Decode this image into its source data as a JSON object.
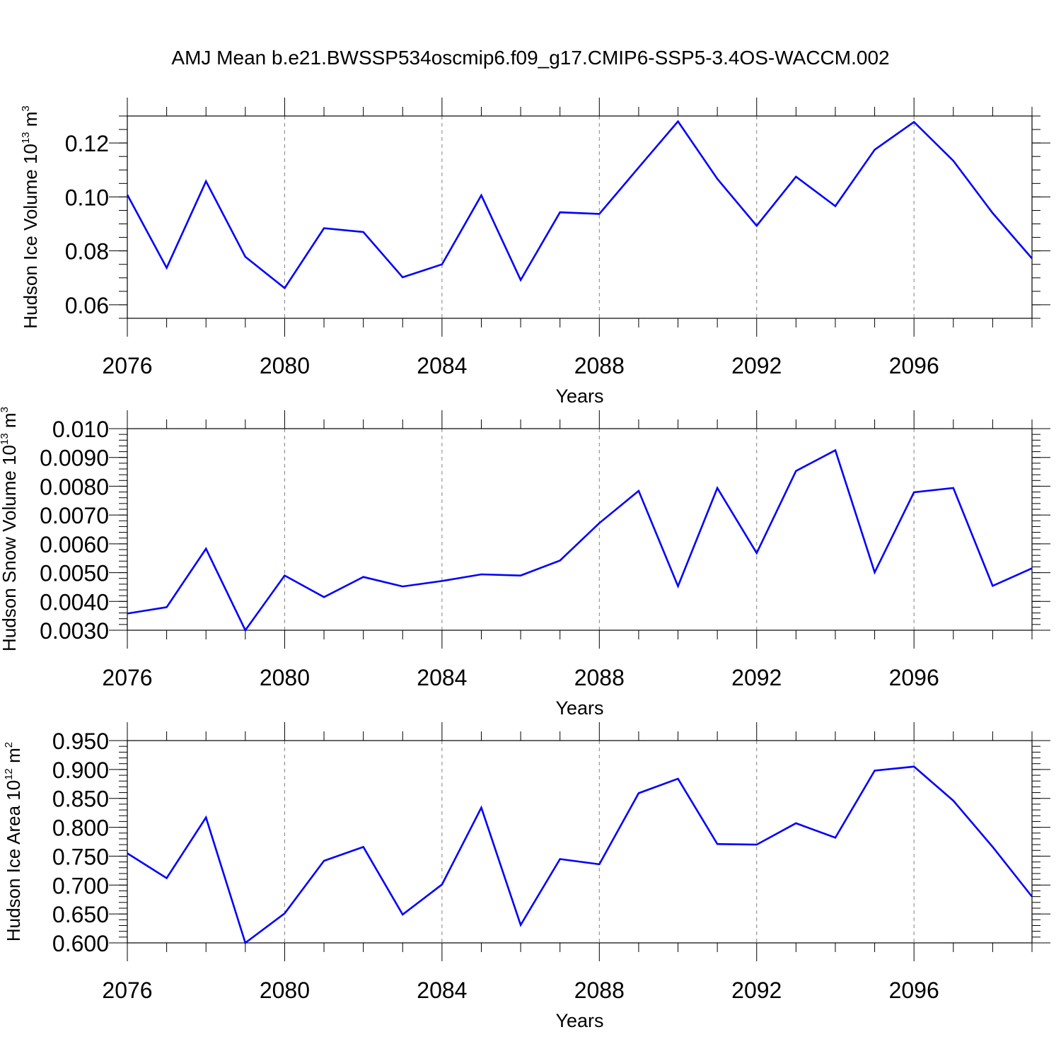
{
  "title": "AMJ Mean b.e21.BWSSP534oscmip6.f09_g17.CMIP6-SSP5-3.4OS-WACCM.002",
  "colors": {
    "line": "#0000ff",
    "axis": "#000000",
    "grid": "#808080"
  },
  "chart_data": [
    {
      "type": "line",
      "ylabel": {
        "main": "Hudson Ice Volume 10",
        "exp": "13",
        "unit": "m",
        "unit_exp": "3"
      },
      "xlabel": "Years",
      "xlim": [
        2076,
        2099
      ],
      "ylim": [
        0.055,
        0.13
      ],
      "x_ticks": [
        2076,
        2080,
        2084,
        2088,
        2092,
        2096
      ],
      "x_tick_labels": [
        "2076",
        "2080",
        "2084",
        "2088",
        "2092",
        "2096"
      ],
      "y_ticks": [
        0.06,
        0.08,
        0.1,
        0.12
      ],
      "y_tick_labels": [
        "0.06",
        "0.08",
        "0.10",
        "0.12"
      ],
      "y_minor_step": 0.005,
      "grid": "vertical dashed at major x ticks",
      "series": [
        {
          "name": "Hudson Ice Volume",
          "x": [
            2076,
            2077,
            2078,
            2079,
            2080,
            2081,
            2082,
            2083,
            2084,
            2085,
            2086,
            2087,
            2088,
            2089,
            2090,
            2091,
            2092,
            2093,
            2094,
            2095,
            2096,
            2097,
            2098,
            2099
          ],
          "values": [
            0.1008,
            0.0737,
            0.1058,
            0.0778,
            0.0662,
            0.0884,
            0.087,
            0.0702,
            0.075,
            0.1006,
            0.0692,
            0.0943,
            0.0937,
            0.1109,
            0.128,
            0.1067,
            0.0893,
            0.1075,
            0.0966,
            0.1175,
            0.1278,
            0.1134,
            0.094,
            0.0772
          ]
        }
      ]
    },
    {
      "type": "line",
      "ylabel": {
        "main": "Hudson Snow Volume 10",
        "exp": "13",
        "unit": "m",
        "unit_exp": "3"
      },
      "xlabel": "Years",
      "xlim": [
        2076,
        2099
      ],
      "ylim": [
        0.003,
        0.01
      ],
      "x_ticks": [
        2076,
        2080,
        2084,
        2088,
        2092,
        2096
      ],
      "x_tick_labels": [
        "2076",
        "2080",
        "2084",
        "2088",
        "2092",
        "2096"
      ],
      "y_ticks": [
        0.003,
        0.004,
        0.005,
        0.006,
        0.007,
        0.008,
        0.009,
        0.01
      ],
      "y_tick_labels": [
        "0.0030",
        "0.0040",
        "0.0050",
        "0.0060",
        "0.0070",
        "0.0080",
        "0.0090",
        "0.010"
      ],
      "y_minor_step": 0.0002,
      "grid": "vertical dashed at major x ticks",
      "series": [
        {
          "name": "Hudson Snow Volume",
          "x": [
            2076,
            2077,
            2078,
            2079,
            2080,
            2081,
            2082,
            2083,
            2084,
            2085,
            2086,
            2087,
            2088,
            2089,
            2090,
            2091,
            2092,
            2093,
            2094,
            2095,
            2096,
            2097,
            2098,
            2099
          ],
          "values": [
            0.00358,
            0.0038,
            0.00583,
            0.003,
            0.0049,
            0.00415,
            0.00485,
            0.00452,
            0.00471,
            0.00494,
            0.0049,
            0.00542,
            0.00672,
            0.00784,
            0.00453,
            0.00794,
            0.00568,
            0.00853,
            0.00925,
            0.00501,
            0.00779,
            0.00794,
            0.00454,
            0.00515
          ]
        }
      ]
    },
    {
      "type": "line",
      "ylabel": {
        "main": "Hudson Ice Area 10",
        "exp": "12",
        "unit": "m",
        "unit_exp": "2"
      },
      "xlabel": "Years",
      "xlim": [
        2076,
        2099
      ],
      "ylim": [
        0.6,
        0.95
      ],
      "x_ticks": [
        2076,
        2080,
        2084,
        2088,
        2092,
        2096
      ],
      "x_tick_labels": [
        "2076",
        "2080",
        "2084",
        "2088",
        "2092",
        "2096"
      ],
      "y_ticks": [
        0.6,
        0.65,
        0.7,
        0.75,
        0.8,
        0.85,
        0.9,
        0.95
      ],
      "y_tick_labels": [
        "0.600",
        "0.650",
        "0.700",
        "0.750",
        "0.800",
        "0.850",
        "0.900",
        "0.950"
      ],
      "y_minor_step": 0.01,
      "grid": "vertical dashed at major x ticks",
      "series": [
        {
          "name": "Hudson Ice Area",
          "x": [
            2076,
            2077,
            2078,
            2079,
            2080,
            2081,
            2082,
            2083,
            2084,
            2085,
            2086,
            2087,
            2088,
            2089,
            2090,
            2091,
            2092,
            2093,
            2094,
            2095,
            2096,
            2097,
            2098,
            2099
          ],
          "values": [
            0.755,
            0.712,
            0.817,
            0.6,
            0.651,
            0.742,
            0.766,
            0.649,
            0.701,
            0.834,
            0.631,
            0.745,
            0.736,
            0.859,
            0.884,
            0.771,
            0.77,
            0.807,
            0.782,
            0.898,
            0.905,
            0.846,
            0.766,
            0.68
          ]
        }
      ]
    }
  ]
}
